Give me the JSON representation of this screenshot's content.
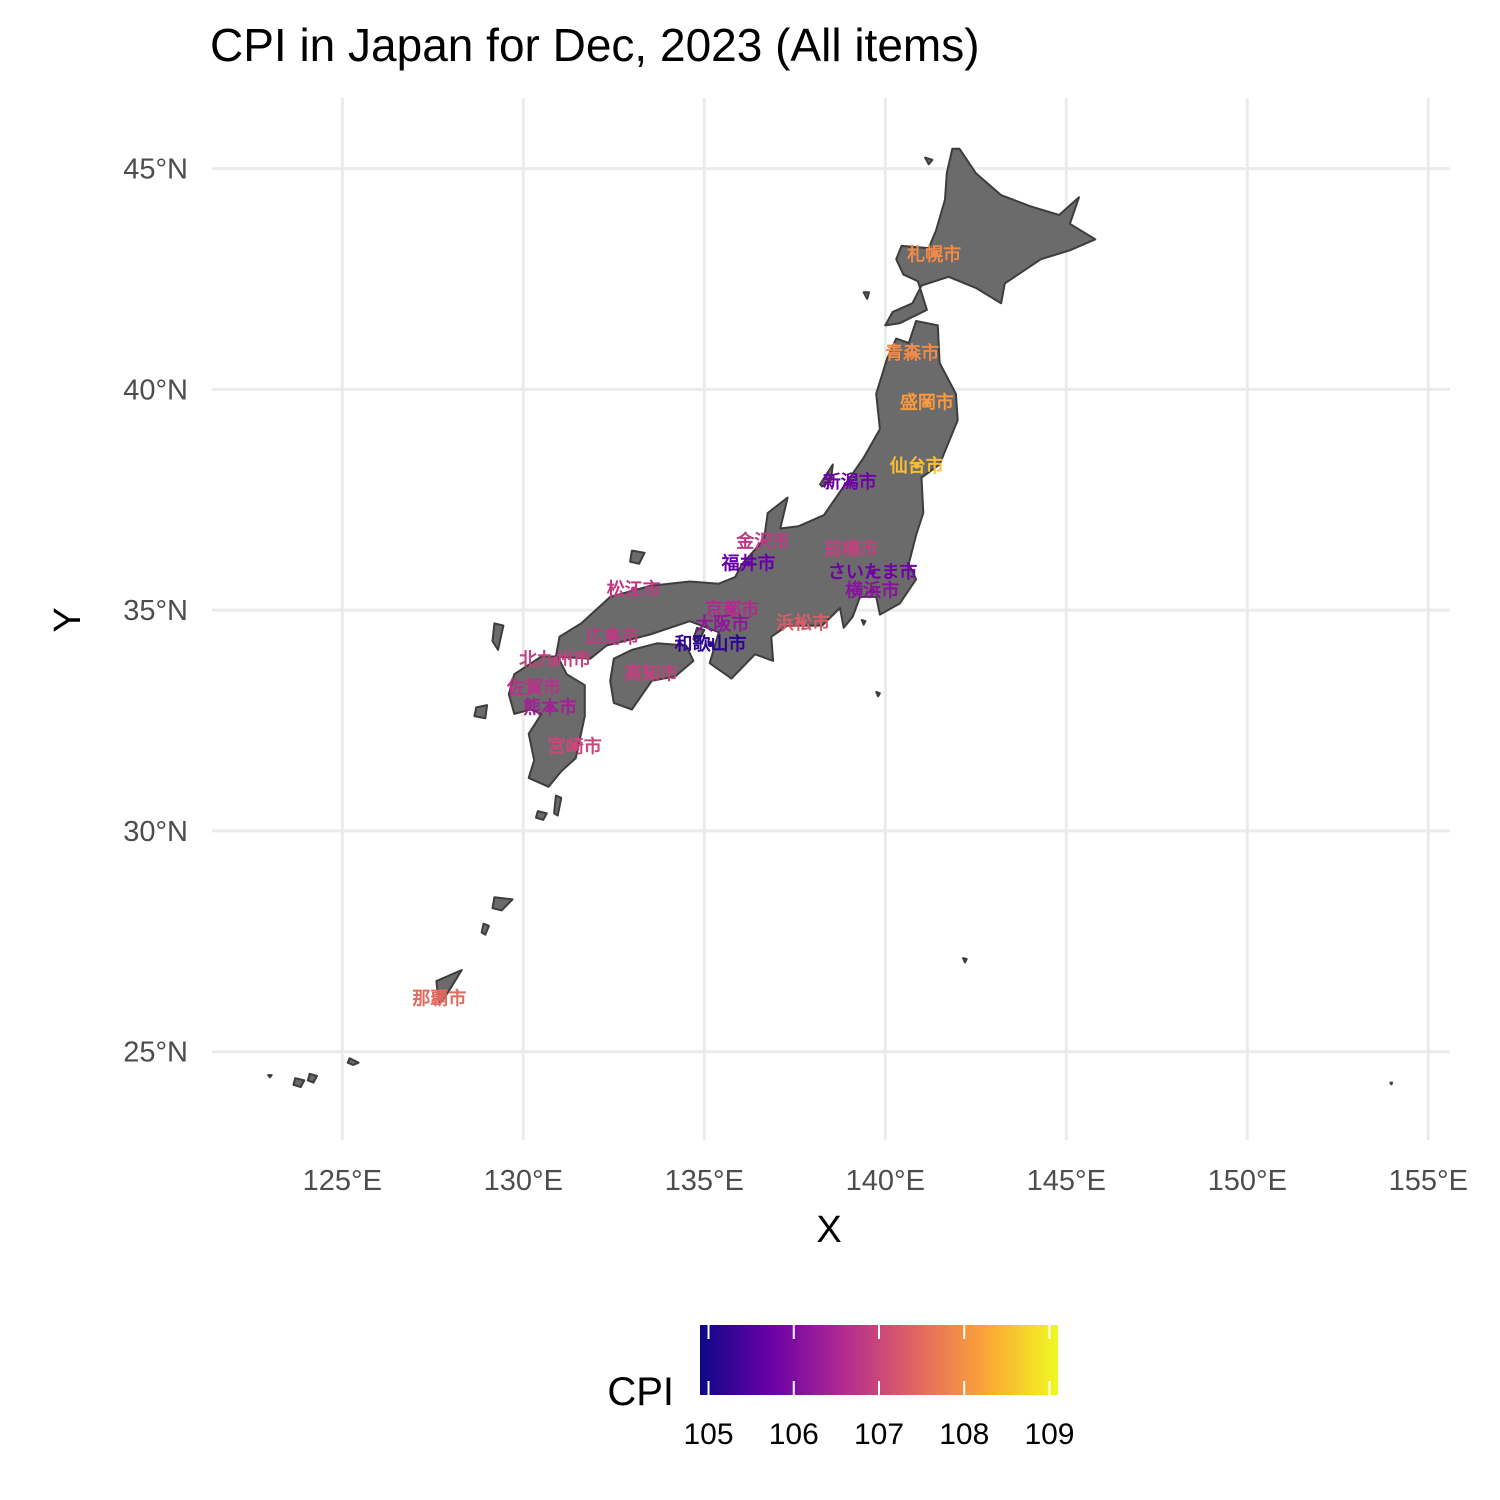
{
  "title": "CPI in Japan for Dec, 2023 (All items)",
  "axes": {
    "x_title": "X",
    "y_title": "Y",
    "x_ticks": [
      {
        "value": 125,
        "label": "125°E"
      },
      {
        "value": 130,
        "label": "130°E"
      },
      {
        "value": 135,
        "label": "135°E"
      },
      {
        "value": 140,
        "label": "140°E"
      },
      {
        "value": 145,
        "label": "145°E"
      },
      {
        "value": 150,
        "label": "150°E"
      },
      {
        "value": 155,
        "label": "155°E"
      }
    ],
    "y_ticks": [
      {
        "value": 25,
        "label": "25°N"
      },
      {
        "value": 30,
        "label": "30°N"
      },
      {
        "value": 35,
        "label": "35°N"
      },
      {
        "value": 40,
        "label": "40°N"
      },
      {
        "value": 45,
        "label": "45°N"
      }
    ],
    "xlim": [
      121.4,
      155.6
    ],
    "ylim": [
      23.0,
      46.6
    ]
  },
  "map_colors": {
    "land_fill": "#6b6b6b",
    "land_border": "#3d3d3d",
    "grid": "#ebebeb"
  },
  "legend": {
    "title": "CPI",
    "min": 104.9,
    "max": 109.1,
    "ticks": [
      105,
      106,
      107,
      108,
      109
    ],
    "colors": [
      "#0d0887",
      "#6a00a8",
      "#b12a90",
      "#e16462",
      "#fca636",
      "#f0f921"
    ]
  },
  "chart_data": {
    "type": "map",
    "title": "CPI in Japan for Dec, 2023 (All items)",
    "xlabel": "X",
    "ylabel": "Y",
    "color_variable": "CPI",
    "points": [
      {
        "name": "札幌市",
        "lon": 141.35,
        "lat": 43.06,
        "cpi": 107.9
      },
      {
        "name": "青森市",
        "lon": 140.74,
        "lat": 40.82,
        "cpi": 107.9
      },
      {
        "name": "盛岡市",
        "lon": 141.15,
        "lat": 39.7,
        "cpi": 108.1
      },
      {
        "name": "仙台市",
        "lon": 140.87,
        "lat": 38.27,
        "cpi": 108.5
      },
      {
        "name": "新潟市",
        "lon": 139.02,
        "lat": 37.9,
        "cpi": 105.8
      },
      {
        "name": "金沢市",
        "lon": 136.63,
        "lat": 36.56,
        "cpi": 106.8
      },
      {
        "name": "前橋市",
        "lon": 139.06,
        "lat": 36.39,
        "cpi": 106.9
      },
      {
        "name": "福井市",
        "lon": 136.22,
        "lat": 36.06,
        "cpi": 105.7
      },
      {
        "name": "さいたま市",
        "lon": 139.65,
        "lat": 35.86,
        "cpi": 105.8
      },
      {
        "name": "松江市",
        "lon": 133.05,
        "lat": 35.47,
        "cpi": 106.8
      },
      {
        "name": "横浜市",
        "lon": 139.64,
        "lat": 35.44,
        "cpi": 106.1
      },
      {
        "name": "京都市",
        "lon": 135.77,
        "lat": 35.01,
        "cpi": 106.6
      },
      {
        "name": "浜松市",
        "lon": 137.73,
        "lat": 34.71,
        "cpi": 107.3
      },
      {
        "name": "大阪市",
        "lon": 135.5,
        "lat": 34.69,
        "cpi": 106.2
      },
      {
        "name": "広島市",
        "lon": 132.46,
        "lat": 34.39,
        "cpi": 106.8
      },
      {
        "name": "和歌山市",
        "lon": 135.17,
        "lat": 34.23,
        "cpi": 105.2
      },
      {
        "name": "北九州市",
        "lon": 130.88,
        "lat": 33.88,
        "cpi": 106.9
      },
      {
        "name": "高知市",
        "lon": 133.53,
        "lat": 33.56,
        "cpi": 106.9
      },
      {
        "name": "佐賀市",
        "lon": 130.3,
        "lat": 33.25,
        "cpi": 106.7
      },
      {
        "name": "熊本市",
        "lon": 130.74,
        "lat": 32.8,
        "cpi": 106.4
      },
      {
        "name": "宮崎市",
        "lon": 131.42,
        "lat": 31.91,
        "cpi": 107.0
      },
      {
        "name": "那覇市",
        "lon": 127.68,
        "lat": 26.21,
        "cpi": 107.5
      }
    ]
  }
}
